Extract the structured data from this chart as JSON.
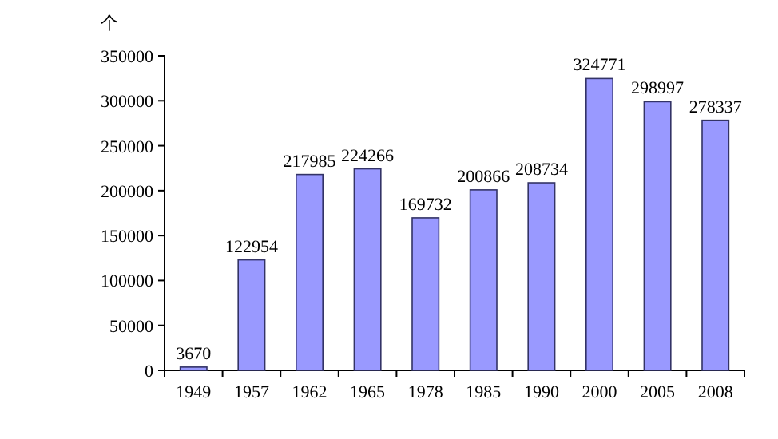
{
  "chart_data": {
    "type": "bar",
    "ylabel": "个",
    "categories": [
      "1949",
      "1957",
      "1962",
      "1965",
      "1978",
      "1985",
      "1990",
      "2000",
      "2005",
      "2008"
    ],
    "values": [
      3670,
      122954,
      217985,
      224266,
      169732,
      200866,
      208734,
      324771,
      298997,
      278337
    ],
    "color": "#9999ff",
    "ylim": [
      0,
      350000
    ],
    "yticks": [
      0,
      50000,
      100000,
      150000,
      200000,
      250000,
      300000,
      350000
    ],
    "data_labels": true
  }
}
